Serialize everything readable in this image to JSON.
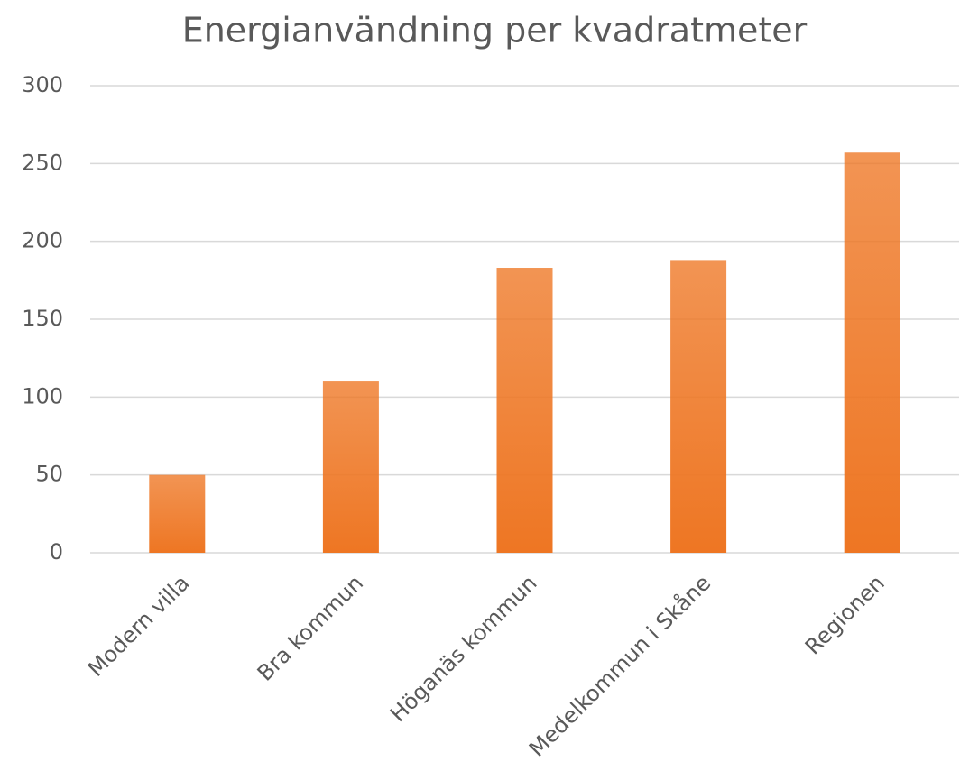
{
  "chart_data": {
    "type": "bar",
    "title": "Energianvändning per kvadratmeter",
    "categories": [
      "Modern villa",
      "Bra kommun",
      "Höganäs kommun",
      "Medelkommun i Skåne",
      "Regionen"
    ],
    "values": [
      50,
      110,
      183,
      188,
      257
    ],
    "color": "#ee7623",
    "ylim": [
      0,
      300
    ],
    "yticks": [
      0,
      50,
      100,
      150,
      200,
      250,
      300
    ],
    "grid": true
  }
}
